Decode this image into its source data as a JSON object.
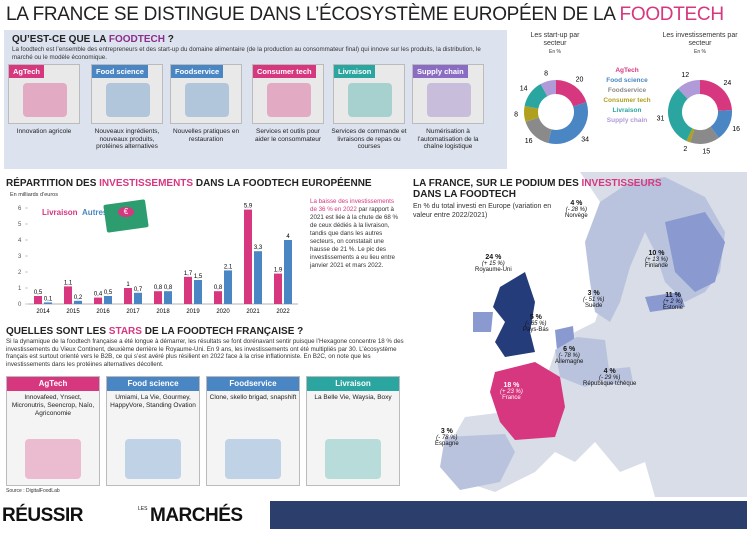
{
  "title": {
    "part1": "LA FRANCE SE DISTINGUE DANS L’ÉCOSYSTÈME EUROPÉEN DE LA ",
    "accent": "FOODTECH"
  },
  "definition": {
    "heading_part1": "QU’EST-CE QUE LA ",
    "heading_accent": "FOODTECH",
    "heading_end": " ?",
    "text": "La foodtech est l’ensemble des entrepreneurs et des start-up du domaine alimentaire (de la production au consommateur final) qui innove sur les produits, la distribution, le marché ou le modèle économique.",
    "tiles": [
      {
        "label": "AgTech",
        "color": "#d6377f",
        "caption": "Innovation agricole"
      },
      {
        "label": "Food science",
        "color": "#4a86c4",
        "caption": "Nouveaux ingrédients, nouveaux produits, protéines alternatives"
      },
      {
        "label": "Foodservice",
        "color": "#4a86c4",
        "caption": "Nouvelles pratiques en restauration"
      },
      {
        "label": "Consumer tech",
        "color": "#d6377f",
        "caption": "Services et outils pour aider le consommateur"
      },
      {
        "label": "Livraison",
        "color": "#2aa5a0",
        "caption": "Services de commande et livraisons de repas ou courses"
      },
      {
        "label": "Supply chain",
        "color": "#8b6cc4",
        "caption": "Numérisation à l’automatisation de la chaîne logistique"
      }
    ]
  },
  "donuts": {
    "left_title": "Les start-up par secteur",
    "left_unit": "En %",
    "right_title": "Les investissements par secteur",
    "right_unit": "En %",
    "legend": [
      {
        "name": "AgTech",
        "color": "#d6377f"
      },
      {
        "name": "Food science",
        "color": "#4a86c4"
      },
      {
        "name": "Foodservice",
        "color": "#8a8a8a"
      },
      {
        "name": "Consumer tech",
        "color": "#b0a020"
      },
      {
        "name": "Livraison",
        "color": "#2aa5a0"
      },
      {
        "name": "Supply chain",
        "color": "#b09ad8"
      }
    ],
    "left_values": [
      20,
      34,
      16,
      8,
      14,
      8
    ],
    "right_values": [
      24,
      16,
      15,
      2,
      31,
      12
    ]
  },
  "invest": {
    "heading_part1": "RÉPARTITION DES ",
    "heading_accent": "INVESTISSEMENTS",
    "heading_end": " DANS LA FOODTECH EUROPÉENNE",
    "unit": "En milliards d’euros",
    "legend_a": "Livraison",
    "legend_b": "Autres",
    "note_accent": "La baisse des investissements de 36 % en 2022",
    "note_text": "par rapport à 2021 est liée à la chute de 68 % de ceux dédiés à la livraison, tandis que dans les autres secteurs, on constatait une hausse de 21 %. Le pic des investissements a eu lieu entre janvier 2021 et mars 2022."
  },
  "chart_data": {
    "type": "bar",
    "categories": [
      "2014",
      "2015",
      "2016",
      "2017",
      "2018",
      "2019",
      "2020",
      "2021",
      "2022"
    ],
    "series": [
      {
        "name": "Livraison",
        "values": [
          0.5,
          1.1,
          0.4,
          1.0,
          0.8,
          1.7,
          0.8,
          5.9,
          1.9
        ]
      },
      {
        "name": "Autres",
        "values": [
          0.1,
          0.2,
          0.5,
          0.7,
          0.8,
          1.5,
          2.1,
          3.3,
          4.0
        ]
      }
    ],
    "value_labels_a": [
      "0,5",
      "1,1",
      "0,4",
      "1",
      "0,8",
      "1,7",
      "0,8",
      "5,9",
      "1,9"
    ],
    "value_labels_b": [
      "0,1",
      "0,2",
      "0,5",
      "0,7",
      "0,8",
      "1,5",
      "2,1",
      "3,3",
      "4"
    ],
    "yticks": [
      "0",
      "1",
      "2",
      "3",
      "4",
      "5",
      "6"
    ],
    "ylim": [
      0,
      6
    ],
    "colors": [
      "#d6377f",
      "#4a86c4"
    ]
  },
  "stars": {
    "heading_part1": "QUELLES SONT LES ",
    "heading_accent": "STARS",
    "heading_end": " DE LA FOODTECH FRANÇAISE ?",
    "text": "Si la dynamique de la foodtech française a été longue à démarrer, les résultats se font dorénavant sentir puisque l’Hexagone concentre 18 % des investissements du Vieux Continent, deuxième derrière le Royaume-Uni. En 9 ans, les investissements ont été multipliés par 30. L’écosystème français est surtout orienté vers le B2B, ce qui s’est avéré plus résilient en 2022 face à la crise inflationniste. En B2C, on note que les investissements dans les protéines alternatives décollent.",
    "tiles": [
      {
        "label": "AgTech",
        "color": "#d6377f",
        "text": "Innovafeed, Ynsect, Micronutris, Seencrop, Naïo, Agriconomie"
      },
      {
        "label": "Food science",
        "color": "#4a86c4",
        "text": "Umiami, La Vie, Gourmey, HappyVore, Standing Ovation"
      },
      {
        "label": "Foodservice",
        "color": "#4a86c4",
        "text": "Clone, skello brigad, snapshift"
      },
      {
        "label": "Livraison",
        "color": "#2aa5a0",
        "text": "La Belle Vie, Waysia, Boxy"
      }
    ],
    "source": "Source : DigitalFoodLab"
  },
  "map": {
    "heading_part1": "LA FRANCE, SUR LE PODIUM DES ",
    "heading_accent": "INVESTISSEURS",
    "heading_line2": "DANS LA FOODTECH",
    "sub": "En % du total investi en Europe (variation en valeur entre 2022/2021)",
    "countries": [
      {
        "pct": "24 %",
        "var": "(+ 15 %)",
        "name": "Royaume-Uni"
      },
      {
        "pct": "4 %",
        "var": "(- 28 %)",
        "name": "Norvège"
      },
      {
        "pct": "10 %",
        "var": "(+ 13 %)",
        "name": "Finlande"
      },
      {
        "pct": "3 %",
        "var": "(- 51 %)",
        "name": "Suède"
      },
      {
        "pct": "11 %",
        "var": "(+ 2 %)",
        "name": "Estonie"
      },
      {
        "pct": "5 %",
        "var": "(- 65 %)",
        "name": "Pays-Bas"
      },
      {
        "pct": "6 %",
        "var": "(- 78 %)",
        "name": "Allemagne"
      },
      {
        "pct": "4 %",
        "var": "(- 29 %)",
        "name": "République tchèque"
      },
      {
        "pct": "18 %",
        "var": "(+ 23 %)",
        "name": "France"
      },
      {
        "pct": "3 %",
        "var": "(- 78 %)",
        "name": "Espagne"
      }
    ]
  },
  "footer": {
    "logo": "RÉUSSIR",
    "logo_small": "LES",
    "logo2": "MARCHÉS"
  }
}
